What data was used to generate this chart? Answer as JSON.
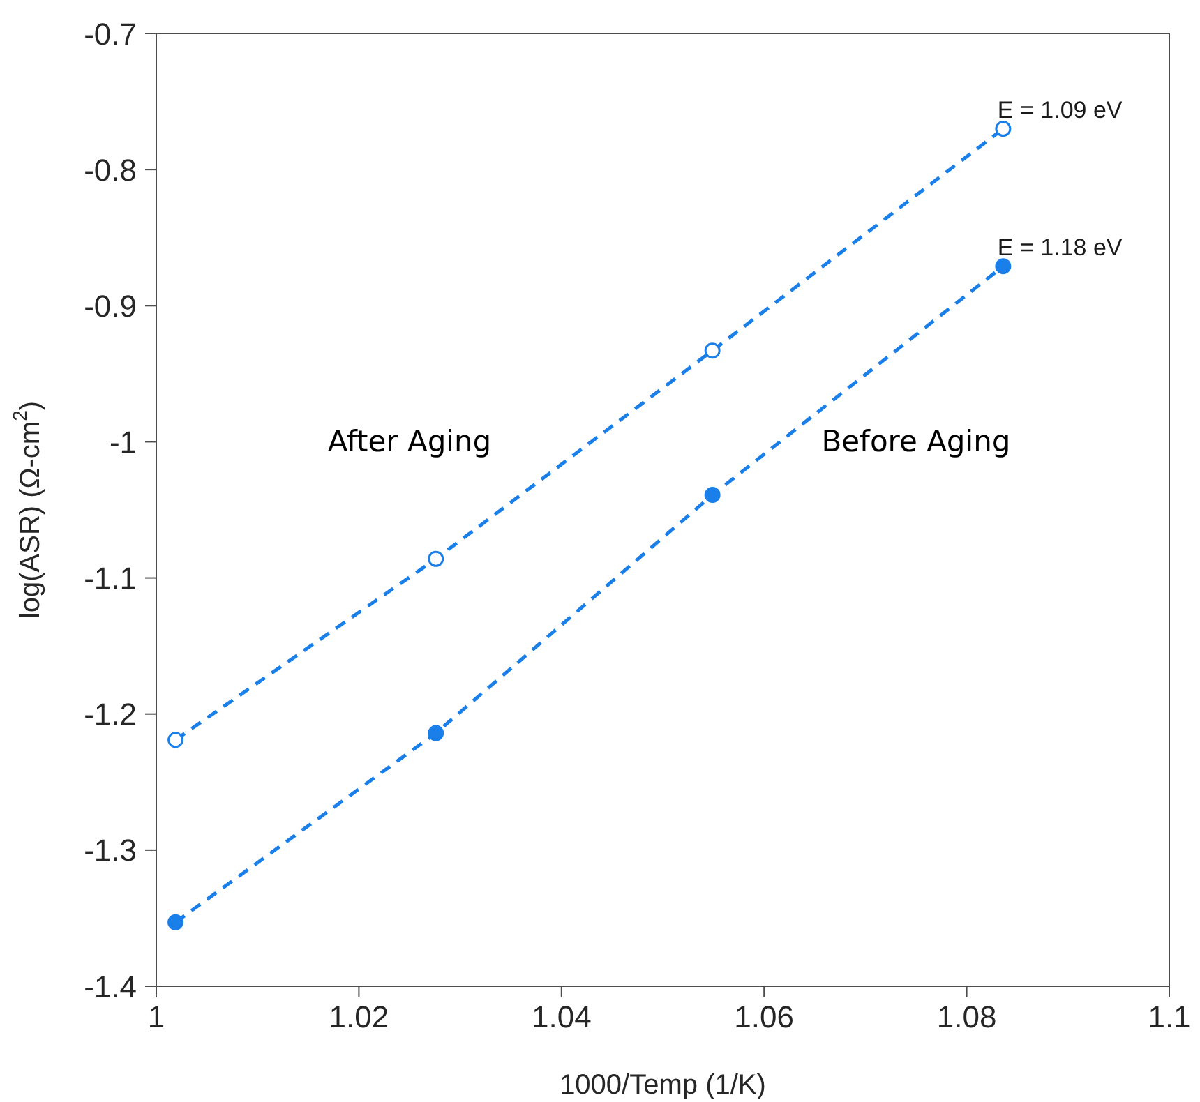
{
  "chart_data": {
    "type": "line",
    "xlabel": "1000/Temp (1/K)",
    "ylabel": "log(ASR) (Ω-cm$^{2}$)",
    "xlim": [
      1,
      1.1
    ],
    "xticks": [
      1,
      1.02,
      1.04,
      1.06,
      1.08,
      1.1
    ],
    "ylim": [
      -1.4,
      -0.7
    ],
    "yticks": [
      -1.4,
      -1.3,
      -1.2,
      -1.1,
      -1,
      -0.9,
      -0.8,
      -0.7
    ],
    "x": [
      1.0019,
      1.0276,
      1.0549,
      1.0836
    ],
    "marker": "circle",
    "line_style": "dashed",
    "legend": false,
    "series": [
      {
        "color": "#1a7fe8",
        "values": [
          -1.219,
          -1.086,
          -0.933,
          -0.77
        ]
      },
      {
        "color": "#1a7fe8",
        "values": [
          -1.353,
          -1.214,
          -1.039,
          -0.871
        ]
      }
    ],
    "annotations": [
      {
        "text": "E = 1.09 eV",
        "x": 1.0836,
        "y": -0.77
      },
      {
        "text": "E = 1.18 eV",
        "x": 1.0836,
        "y": -0.871
      },
      "After Aging",
      "Before Aging"
    ]
  }
}
